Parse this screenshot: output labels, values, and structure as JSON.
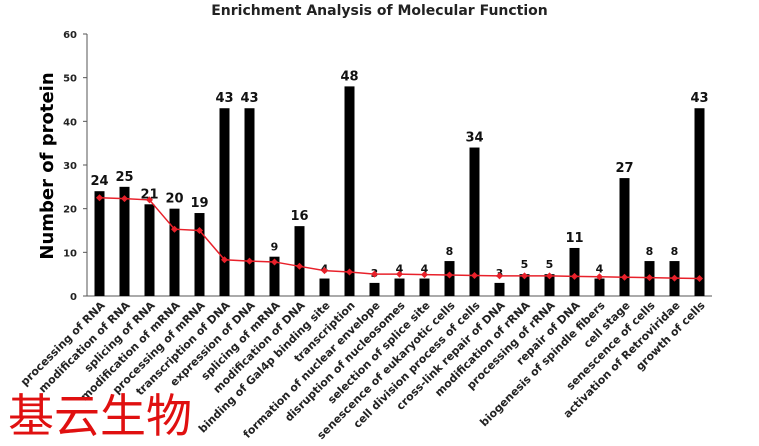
{
  "chart_data": {
    "type": "bar",
    "title": "Enrichment  Analysis of Molecular Function",
    "ylabel": "Number of protein",
    "xlabel": "",
    "ylim": [
      0,
      60
    ],
    "yticks": [
      0,
      10,
      20,
      30,
      40,
      50,
      60
    ],
    "categories": [
      "processing of RNA",
      "modification of RNA",
      "splicing of RNA",
      "modification of mRNA",
      "processing of mRNA",
      "transcription of DNA",
      "expression of DNA",
      "splicing of mRNA",
      "modification of DNA",
      "binding of Gal4p binding site",
      "transcription",
      "formation of nuclear envelope",
      "disruption of nucleosomes",
      "selection of splice site",
      "senescence of eukaryotic cells",
      "cell division process of cells",
      "cross-link repair of DNA",
      "modification of rRNA",
      "processing of rRNA",
      "repair of DNA",
      "biogenesis of spindle fibers",
      "cell stage",
      "senescence of cells",
      "activation of Retroviridae",
      "growth of cells"
    ],
    "series": [
      {
        "type": "bar",
        "values": [
          24,
          25,
          21,
          20,
          19,
          43,
          43,
          9,
          16,
          4,
          48,
          3,
          4,
          4,
          8,
          34,
          3,
          5,
          5,
          11,
          4,
          27,
          8,
          8,
          43
        ],
        "color": "#000000"
      },
      {
        "type": "line",
        "values": [
          22.5,
          22.3,
          22,
          15.3,
          15,
          8.3,
          8,
          7.8,
          6.8,
          5.8,
          5.5,
          5,
          5,
          4.9,
          4.8,
          4.7,
          4.6,
          4.6,
          4.6,
          4.5,
          4.4,
          4.3,
          4.2,
          4.1,
          4
        ],
        "color": "#e8202a"
      }
    ],
    "grid": false,
    "legend": "none"
  },
  "watermark": {
    "text": "基云生物",
    "color": "#e01010"
  }
}
